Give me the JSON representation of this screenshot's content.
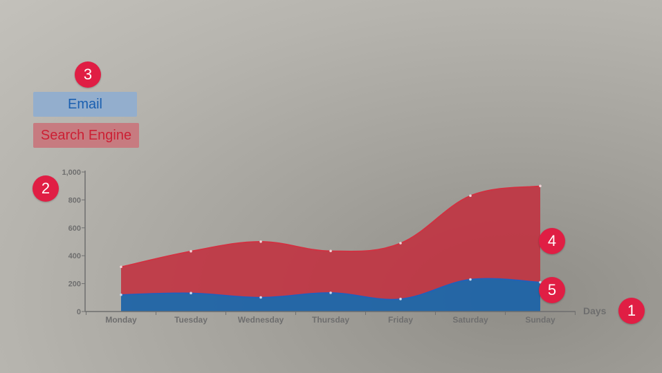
{
  "colors": {
    "email_fill": "#1f64a6",
    "email_line": "#1f5fbf",
    "search_fill": "#c2303f",
    "search_line": "#d62e3f",
    "axis": "#6e6e6e",
    "badge": "#e01e44",
    "email_legend_bg": "#93aecd",
    "email_legend_text": "#1a5fb0",
    "search_legend_bg": "#c77b80",
    "search_legend_text": "#cc1f33"
  },
  "badges": [
    "1",
    "2",
    "3",
    "4",
    "5"
  ],
  "chart_data": {
    "type": "area",
    "stacked": true,
    "categories": [
      "Monday",
      "Tuesday",
      "Wednesday",
      "Thursday",
      "Friday",
      "Saturday",
      "Sunday"
    ],
    "series": [
      {
        "name": "Email",
        "values": [
          120,
          132,
          101,
          134,
          90,
          230,
          210
        ]
      },
      {
        "name": "Search Engine",
        "values": [
          200,
          300,
          400,
          300,
          400,
          600,
          690
        ]
      }
    ],
    "cumulative_top": [
      320,
      432,
      501,
      434,
      490,
      830,
      900
    ],
    "xlabel": "Days",
    "ylabel": "",
    "ylim": [
      0,
      1000
    ],
    "yticks": [
      "0",
      "200",
      "400",
      "600",
      "800",
      "1,000"
    ],
    "ytick_values": [
      0,
      200,
      400,
      600,
      800,
      1000
    ],
    "legend": [
      "Email",
      "Search Engine"
    ],
    "legend_position": "top-left",
    "grid": false
  }
}
